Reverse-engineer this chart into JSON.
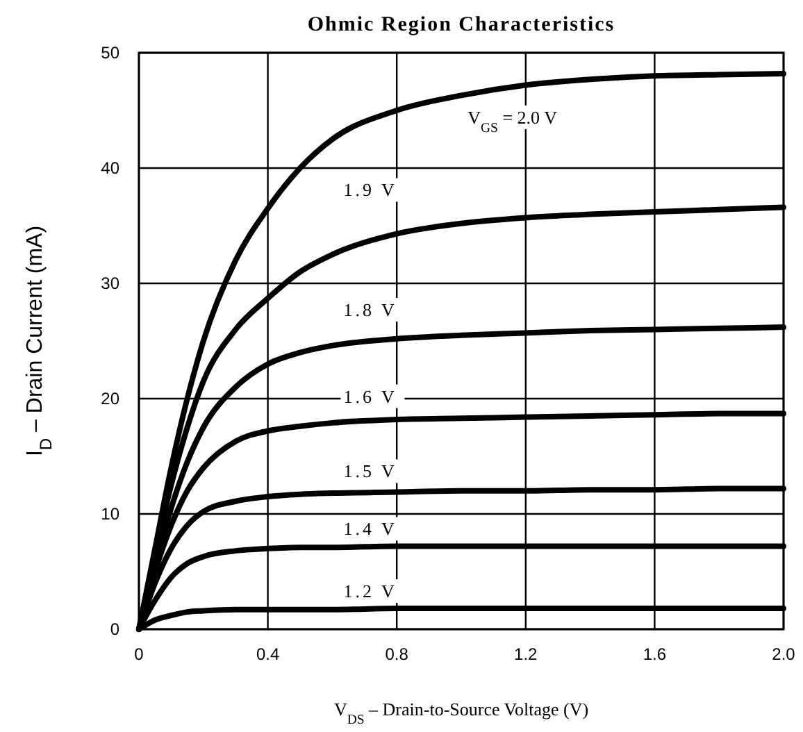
{
  "chart_data": {
    "type": "line",
    "title": "Ohmic Region Characteristics",
    "xlabel": "V$_{DS}$ – Drain-to-Source Voltage (V)",
    "ylabel": "I$_{D}$ – Drain Current (mA)",
    "x": [
      0,
      0.05,
      0.1,
      0.15,
      0.2,
      0.3,
      0.4,
      0.5,
      0.6,
      0.8,
      1.0,
      1.2,
      1.4,
      1.6,
      1.8,
      2.0
    ],
    "series": [
      {
        "color": "#000000",
        "values": [
          0,
          7,
          14,
          20,
          25,
          32,
          36.5,
          40,
          42.5,
          45,
          46.3,
          47.2,
          47.7,
          48,
          48.1,
          48.2
        ]
      },
      {
        "color": "#000000",
        "values": [
          0,
          6.5,
          12.5,
          17.5,
          21.5,
          26,
          28.7,
          31,
          32.5,
          34.3,
          35.2,
          35.7,
          36,
          36.2,
          36.4,
          36.6
        ]
      },
      {
        "color": "#000000",
        "values": [
          0,
          5.5,
          10.5,
          14.5,
          17.5,
          21,
          23,
          24,
          24.6,
          25.2,
          25.5,
          25.7,
          25.9,
          26,
          26.1,
          26.2
        ]
      },
      {
        "color": "#000000",
        "values": [
          0,
          5,
          9,
          12,
          14,
          16.3,
          17.2,
          17.6,
          17.9,
          18.2,
          18.3,
          18.4,
          18.5,
          18.6,
          18.7,
          18.7
        ]
      },
      {
        "color": "#000000",
        "values": [
          0,
          4,
          7,
          9,
          10.2,
          11.1,
          11.5,
          11.7,
          11.8,
          11.9,
          12,
          12,
          12.1,
          12.1,
          12.2,
          12.2
        ]
      },
      {
        "color": "#000000",
        "values": [
          0,
          2.5,
          4.5,
          5.7,
          6.3,
          6.8,
          7,
          7.1,
          7.1,
          7.2,
          7.2,
          7.2,
          7.2,
          7.2,
          7.2,
          7.2
        ]
      },
      {
        "color": "#000000",
        "values": [
          0,
          0.8,
          1.2,
          1.5,
          1.6,
          1.7,
          1.7,
          1.7,
          1.7,
          1.8,
          1.8,
          1.8,
          1.8,
          1.8,
          1.8,
          1.8
        ]
      }
    ],
    "annotations": [
      "V$_{GS}$ = 2.0 V",
      "1.9  V",
      "1.8  V",
      "1.6  V",
      "1.5  V",
      "1.4  V",
      "1.2  V"
    ],
    "xlim": [
      0,
      2
    ],
    "xticks": [
      0,
      {
        "value": 0.4,
        "label": "0.4"
      },
      {
        "value": 0.8,
        "label": "0.8"
      },
      {
        "value": 1.2,
        "label": "1.2"
      },
      {
        "value": 1.6,
        "label": "1.6"
      },
      {
        "value": 2,
        "label": "2.0"
      }
    ],
    "ylim": [
      0,
      50
    ],
    "yticks": [
      0,
      10,
      20,
      30,
      40,
      50
    ],
    "grid": true,
    "marker": "none",
    "line_style": "solid"
  }
}
